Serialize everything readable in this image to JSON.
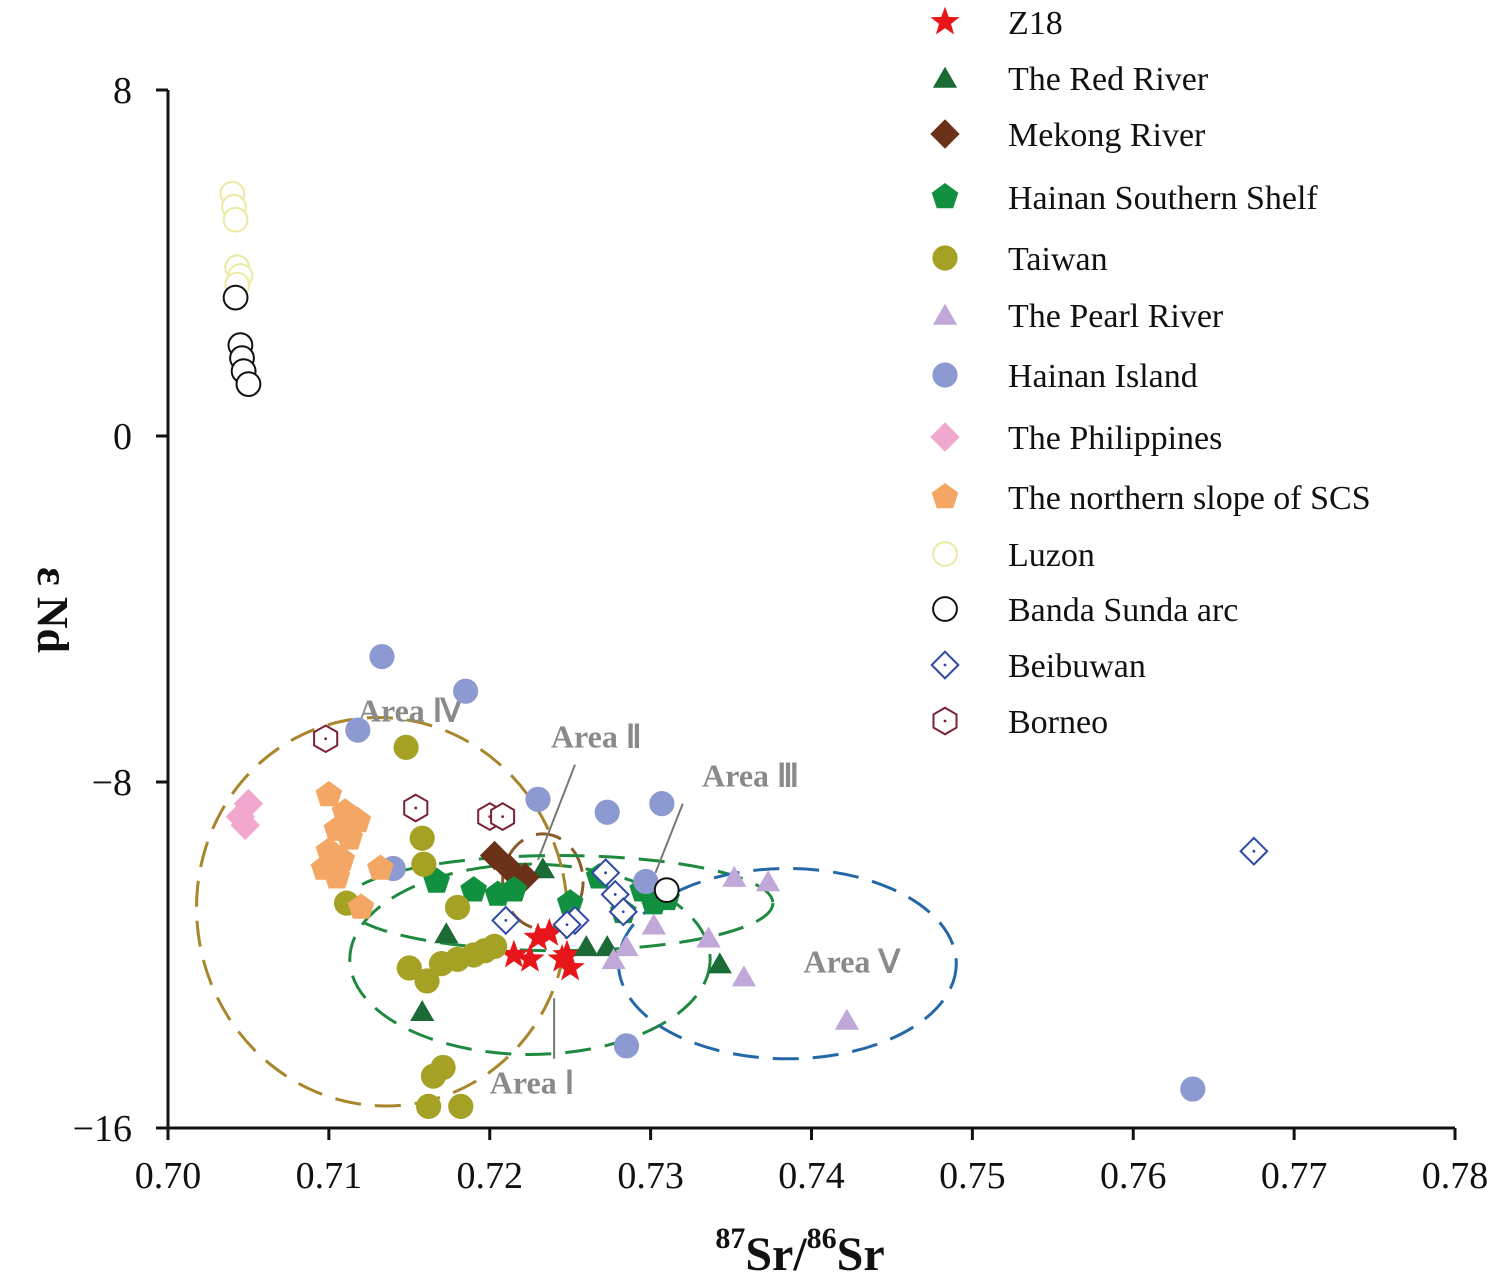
{
  "chart_data": {
    "type": "scatter",
    "title": "",
    "xlabel": {
      "mass1": "87",
      "el1": "Sr",
      "sep": "/",
      "mass2": "86",
      "el2": "Sr"
    },
    "ylabel": "ε Nd",
    "xlim": [
      0.7,
      0.78
    ],
    "ylim": [
      -16,
      8
    ],
    "xticks": [
      "0.70",
      "0.71",
      "0.72",
      "0.73",
      "0.74",
      "0.75",
      "0.76",
      "0.77",
      "0.78"
    ],
    "yticks": [
      "8",
      "0",
      "−8",
      "−16"
    ],
    "legend_position": "top-right",
    "series": [
      {
        "name": "Z18",
        "marker": "star",
        "color": "#e8161b",
        "points": [
          [
            0.7215,
            -12.0
          ],
          [
            0.7225,
            -12.1
          ],
          [
            0.723,
            -11.6
          ],
          [
            0.7237,
            -11.5
          ],
          [
            0.7248,
            -12.0
          ],
          [
            0.725,
            -12.3
          ],
          [
            0.7245,
            -12.1
          ]
        ]
      },
      {
        "name": "The Red River",
        "marker": "triangle",
        "color": "#1a6b35",
        "points": [
          [
            0.7233,
            -10.0
          ],
          [
            0.7173,
            -11.5
          ],
          [
            0.7158,
            -13.3
          ],
          [
            0.726,
            -11.8
          ],
          [
            0.7273,
            -11.8
          ],
          [
            0.7343,
            -12.2
          ]
        ]
      },
      {
        "name": "Mekong River",
        "marker": "diamond",
        "color": "#6b3219",
        "points": [
          [
            0.7203,
            -9.7
          ],
          [
            0.7212,
            -10.0
          ],
          [
            0.7222,
            -10.2
          ]
        ]
      },
      {
        "name": "Hainan Southern Shelf",
        "marker": "pentagon",
        "color": "#11913f",
        "points": [
          [
            0.7167,
            -10.3
          ],
          [
            0.719,
            -10.5
          ],
          [
            0.7205,
            -10.6
          ],
          [
            0.7215,
            -10.5
          ],
          [
            0.725,
            -10.8
          ],
          [
            0.7268,
            -10.2
          ],
          [
            0.7283,
            -11.0
          ],
          [
            0.7295,
            -10.5
          ],
          [
            0.7302,
            -10.8
          ],
          [
            0.731,
            -10.7
          ]
        ]
      },
      {
        "name": "Taiwan",
        "marker": "circle",
        "color": "#a4a125",
        "points": [
          [
            0.7148,
            -7.2
          ],
          [
            0.7158,
            -9.3
          ],
          [
            0.7159,
            -9.9
          ],
          [
            0.7111,
            -10.8
          ],
          [
            0.718,
            -10.9
          ],
          [
            0.715,
            -12.3
          ],
          [
            0.7161,
            -12.6
          ],
          [
            0.717,
            -12.2
          ],
          [
            0.718,
            -12.1
          ],
          [
            0.719,
            -12.0
          ],
          [
            0.7197,
            -11.9
          ],
          [
            0.7203,
            -11.8
          ],
          [
            0.7165,
            -14.8
          ],
          [
            0.7171,
            -14.6
          ],
          [
            0.7162,
            -15.5
          ],
          [
            0.7182,
            -15.5
          ]
        ]
      },
      {
        "name": "The Pearl River",
        "marker": "triangle",
        "color": "#c0a9d9",
        "points": [
          [
            0.7352,
            -10.2
          ],
          [
            0.7373,
            -10.3
          ],
          [
            0.7302,
            -11.3
          ],
          [
            0.7336,
            -11.6
          ],
          [
            0.7285,
            -11.8
          ],
          [
            0.7277,
            -12.1
          ],
          [
            0.7358,
            -12.5
          ],
          [
            0.7422,
            -13.5
          ]
        ]
      },
      {
        "name": "Hainan Island",
        "marker": "circle",
        "color": "#8c9ad1",
        "points": [
          [
            0.7133,
            -5.1
          ],
          [
            0.7185,
            -5.9
          ],
          [
            0.7118,
            -6.8
          ],
          [
            0.723,
            -8.4
          ],
          [
            0.7273,
            -8.7
          ],
          [
            0.7307,
            -8.5
          ],
          [
            0.714,
            -10.0
          ],
          [
            0.7297,
            -10.3
          ],
          [
            0.7285,
            -14.1
          ],
          [
            0.7637,
            -15.1
          ]
        ]
      },
      {
        "name": "The Philippines",
        "marker": "diamond",
        "color": "#f2a7cf",
        "points": [
          [
            0.705,
            -8.5
          ],
          [
            0.7045,
            -8.8
          ],
          [
            0.7048,
            -9.0
          ]
        ]
      },
      {
        "name": "The northern slope of SCS",
        "marker": "pentagon",
        "color": "#f4a765",
        "points": [
          [
            0.71,
            -8.3
          ],
          [
            0.711,
            -8.7
          ],
          [
            0.7118,
            -8.9
          ],
          [
            0.7105,
            -9.1
          ],
          [
            0.7113,
            -9.3
          ],
          [
            0.71,
            -9.6
          ],
          [
            0.7108,
            -9.8
          ],
          [
            0.7097,
            -10.0
          ],
          [
            0.7105,
            -10.2
          ],
          [
            0.7132,
            -10.0
          ],
          [
            0.712,
            -10.9
          ]
        ]
      },
      {
        "name": "Luzon",
        "marker": "open-circle",
        "color": "#ede9a0",
        "points": [
          [
            0.704,
            5.6
          ],
          [
            0.7041,
            5.3
          ],
          [
            0.7042,
            5.0
          ],
          [
            0.7043,
            3.9
          ],
          [
            0.7045,
            3.7
          ],
          [
            0.7043,
            3.5
          ]
        ]
      },
      {
        "name": "Banda Sunda arc",
        "marker": "open-circle",
        "color": "#111111",
        "points": [
          [
            0.7042,
            3.2
          ],
          [
            0.7045,
            2.1
          ],
          [
            0.7046,
            1.8
          ],
          [
            0.7047,
            1.5
          ],
          [
            0.705,
            1.2
          ],
          [
            0.731,
            -10.5
          ]
        ]
      },
      {
        "name": "Beibuwan",
        "marker": "open-diamond",
        "color": "#2f49a6",
        "points": [
          [
            0.7675,
            -9.6
          ],
          [
            0.7272,
            -10.1
          ],
          [
            0.7278,
            -10.6
          ],
          [
            0.7253,
            -11.2
          ],
          [
            0.7248,
            -11.3
          ],
          [
            0.721,
            -11.2
          ],
          [
            0.7283,
            -11.0
          ]
        ]
      },
      {
        "name": "Borneo",
        "marker": "open-hexagon",
        "color": "#7a2233",
        "points": [
          [
            0.7098,
            -7.0
          ],
          [
            0.7154,
            -8.6
          ],
          [
            0.72,
            -8.8
          ],
          [
            0.7208,
            -8.8
          ]
        ]
      }
    ],
    "areas": [
      {
        "label": "Area Ⅰ",
        "color": "#1f8a3f",
        "cx": 0.7225,
        "cy": -12.1,
        "rx": 0.0112,
        "ry": 2.2,
        "label_pos": [
          0.72,
          -15.2
        ],
        "leader_from": [
          0.724,
          -13.0
        ],
        "leader_to": [
          0.724,
          -14.4
        ]
      },
      {
        "label": "Area Ⅱ",
        "color": "#8a5a2a",
        "cx": 0.7233,
        "cy": -10.3,
        "rx": 0.0025,
        "ry": 1.1,
        "label_pos": [
          0.7238,
          -7.2
        ],
        "leader_from": [
          0.7253,
          -7.6
        ],
        "leader_to": [
          0.723,
          -9.8
        ]
      },
      {
        "label": "Area Ⅲ",
        "color": "#1f8a3f",
        "cx": 0.7243,
        "cy": -10.8,
        "rx": 0.0133,
        "ry": 1.1,
        "label_pos": [
          0.7332,
          -8.1
        ],
        "leader_from": [
          0.732,
          -8.5
        ],
        "leader_to": [
          0.7303,
          -10.1
        ]
      },
      {
        "label": "Area Ⅳ",
        "color": "#a8862c",
        "cx": 0.7133,
        "cy": -11.0,
        "rx": 0.0115,
        "ry": 4.5,
        "rotate": -12,
        "label_pos": [
          0.7118,
          -6.6
        ]
      },
      {
        "label": "Area Ⅴ",
        "color": "#2468a8",
        "cx": 0.7385,
        "cy": -12.2,
        "rx": 0.0105,
        "ry": 2.2,
        "label_pos": [
          0.7395,
          -12.4
        ]
      }
    ]
  }
}
